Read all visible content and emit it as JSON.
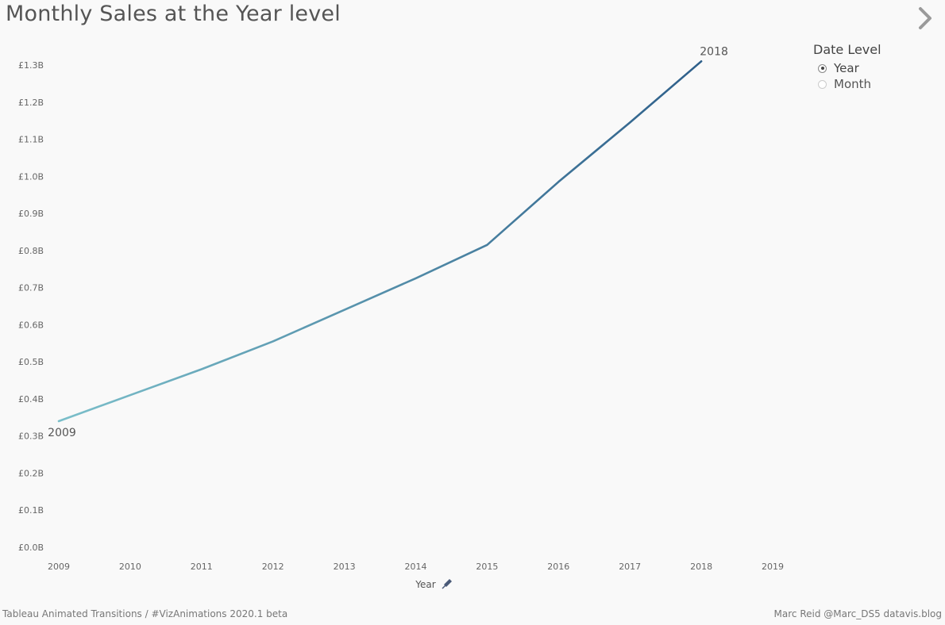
{
  "title": "Monthly Sales at the Year level",
  "legend": {
    "title": "Date Level",
    "options": [
      {
        "label": "Year",
        "selected": true
      },
      {
        "label": "Month",
        "selected": false
      }
    ]
  },
  "footer": {
    "left": "Tableau Animated Transitions / #VizAnimations 2020.1 beta",
    "right": "Marc Reid  @Marc_DS5  datavis.blog"
  },
  "icons": {
    "next": "chevron-right-icon",
    "pin": "pin-icon"
  },
  "chart_data": {
    "type": "line",
    "title": "Monthly Sales at the Year level",
    "xlabel": "Year",
    "ylabel": "",
    "x": [
      2009,
      2010,
      2011,
      2012,
      2013,
      2014,
      2015,
      2016,
      2017,
      2018
    ],
    "series": [
      {
        "values": [
          0.34,
          0.41,
          0.48,
          0.555,
          0.64,
          0.725,
          0.815,
          0.985,
          1.145,
          1.31
        ]
      }
    ],
    "x_ticks": [
      "2009",
      "2010",
      "2011",
      "2012",
      "2013",
      "2014",
      "2015",
      "2016",
      "2017",
      "2018",
      "2019"
    ],
    "y_ticks": [
      "£0.0B",
      "£0.1B",
      "£0.2B",
      "£0.3B",
      "£0.4B",
      "£0.5B",
      "£0.6B",
      "£0.7B",
      "£0.8B",
      "£0.9B",
      "£1.0B",
      "£1.1B",
      "£1.2B",
      "£1.3B"
    ],
    "y_tick_values": [
      0,
      0.1,
      0.2,
      0.3,
      0.4,
      0.5,
      0.6,
      0.7,
      0.8,
      0.9,
      1.0,
      1.1,
      1.2,
      1.3
    ],
    "xlim": [
      2009,
      2019
    ],
    "ylim": [
      0,
      1.3
    ],
    "grid": false,
    "line_color_start": "#7bbfca",
    "line_color_end": "#2e5f8a",
    "annotations": [
      {
        "text": "2009",
        "x": 2009,
        "y": 0.34
      },
      {
        "text": "2018",
        "x": 2018,
        "y": 1.31
      }
    ]
  }
}
